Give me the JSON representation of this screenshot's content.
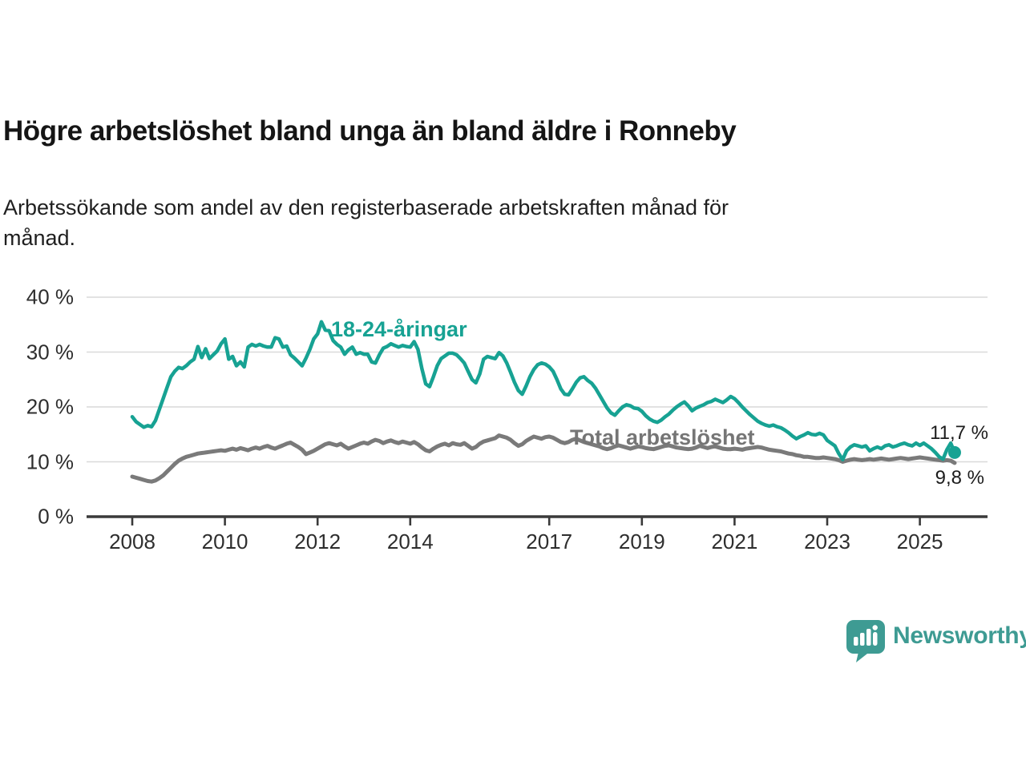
{
  "header": {
    "title": "Högre arbetslöshet bland unga än bland äldre i Ronneby",
    "subtitle_lines": [
      "Arbetssökande som andel av den registerbaserade arbetskraften månad för",
      "månad."
    ]
  },
  "chart_data": {
    "type": "line",
    "title": "Högre arbetslöshet bland unga än bland äldre i Ronneby",
    "x_unit": "month",
    "x_start": "2008-01",
    "x_end": "2025-10",
    "ylim": [
      0,
      40
    ],
    "grid": "horizontal",
    "y_axis": {
      "ticks": [
        {
          "value": 0,
          "label": "0 %"
        },
        {
          "value": 10,
          "label": "10 %"
        },
        {
          "value": 20,
          "label": "20 %"
        },
        {
          "value": 30,
          "label": "30 %"
        },
        {
          "value": 40,
          "label": "40 %"
        }
      ]
    },
    "x_axis": {
      "ticks": [
        {
          "year": 2008,
          "label": "2008"
        },
        {
          "year": 2010,
          "label": "2010"
        },
        {
          "year": 2012,
          "label": "2012"
        },
        {
          "year": 2014,
          "label": "2014"
        },
        {
          "year": 2017,
          "label": "2017"
        },
        {
          "year": 2019,
          "label": "2019"
        },
        {
          "year": 2021,
          "label": "2021"
        },
        {
          "year": 2023,
          "label": "2023"
        },
        {
          "year": 2025,
          "label": "2025"
        }
      ]
    },
    "series": [
      {
        "name": "18-24-åringar",
        "color": "#17a293",
        "last_value_label": "11,7 %",
        "values": [
          18.2,
          17.3,
          16.8,
          16.3,
          16.6,
          16.4,
          17.5,
          19.5,
          21.5,
          23.5,
          25.5,
          26.5,
          27.2,
          27.0,
          27.5,
          28.2,
          28.7,
          31.0,
          29.0,
          30.6,
          28.8,
          29.5,
          30.2,
          31.5,
          32.4,
          28.7,
          29.2,
          27.5,
          28.2,
          27.3,
          30.9,
          31.4,
          31.1,
          31.4,
          31.1,
          30.9,
          30.9,
          32.6,
          32.4,
          30.9,
          31.1,
          29.5,
          28.9,
          28.2,
          27.5,
          28.9,
          30.5,
          32.4,
          33.3,
          35.5,
          34.0,
          33.9,
          32.1,
          31.4,
          30.9,
          29.6,
          30.4,
          30.9,
          29.6,
          29.9,
          29.6,
          29.6,
          28.2,
          28.0,
          29.5,
          30.7,
          31.0,
          31.5,
          31.2,
          30.9,
          31.2,
          31.0,
          30.9,
          31.9,
          30.5,
          27.0,
          24.2,
          23.7,
          25.5,
          27.5,
          28.8,
          29.3,
          29.8,
          29.8,
          29.5,
          28.8,
          28.0,
          26.5,
          25.0,
          24.4,
          26.0,
          28.7,
          29.2,
          29.0,
          28.8,
          29.9,
          29.3,
          28.0,
          26.3,
          24.5,
          23.0,
          22.3,
          23.8,
          25.5,
          26.8,
          27.7,
          28.0,
          27.8,
          27.3,
          26.5,
          25.0,
          23.3,
          22.3,
          22.2,
          23.3,
          24.5,
          25.3,
          25.5,
          24.8,
          24.3,
          23.4,
          22.2,
          21.0,
          19.8,
          18.9,
          18.5,
          19.3,
          20.0,
          20.4,
          20.2,
          19.8,
          19.7,
          19.2,
          18.4,
          17.8,
          17.4,
          17.2,
          17.6,
          18.2,
          18.7,
          19.4,
          20.0,
          20.5,
          20.9,
          20.2,
          19.3,
          19.8,
          20.1,
          20.4,
          20.8,
          21.0,
          21.4,
          21.1,
          20.8,
          21.3,
          21.9,
          21.5,
          20.8,
          20.0,
          19.3,
          18.6,
          18.0,
          17.4,
          17.0,
          16.7,
          16.5,
          16.7,
          16.4,
          16.2,
          15.8,
          15.3,
          14.7,
          14.2,
          14.6,
          14.9,
          15.3,
          15.0,
          14.9,
          15.2,
          14.9,
          13.9,
          13.4,
          12.9,
          11.5,
          10.4,
          12.0,
          12.7,
          13.1,
          12.9,
          12.7,
          12.9,
          12.0,
          12.4,
          12.7,
          12.4,
          12.9,
          13.1,
          12.7,
          12.9,
          13.2,
          13.4,
          13.1,
          12.9,
          13.4,
          13.0,
          13.4,
          12.9,
          12.4,
          11.7,
          10.9,
          10.5,
          12.2,
          13.4,
          11.7
        ]
      },
      {
        "name": "Total arbetslöshet",
        "color": "#7a7a7a",
        "last_value_label": "9,8 %",
        "values": [
          7.3,
          7.1,
          6.9,
          6.7,
          6.5,
          6.4,
          6.6,
          7.0,
          7.5,
          8.2,
          8.9,
          9.6,
          10.2,
          10.6,
          10.9,
          11.1,
          11.3,
          11.5,
          11.6,
          11.7,
          11.8,
          11.9,
          12.0,
          12.1,
          12.0,
          12.2,
          12.4,
          12.2,
          12.5,
          12.3,
          12.1,
          12.4,
          12.6,
          12.4,
          12.7,
          12.9,
          12.6,
          12.4,
          12.7,
          13.0,
          13.3,
          13.5,
          13.1,
          12.7,
          12.2,
          11.4,
          11.7,
          12.0,
          12.4,
          12.8,
          13.2,
          13.4,
          13.2,
          13.0,
          13.3,
          12.8,
          12.4,
          12.7,
          13.0,
          13.3,
          13.5,
          13.3,
          13.7,
          14.0,
          13.8,
          13.4,
          13.7,
          13.9,
          13.6,
          13.4,
          13.7,
          13.5,
          13.3,
          13.6,
          13.2,
          12.6,
          12.1,
          11.9,
          12.4,
          12.8,
          13.1,
          13.3,
          13.0,
          13.4,
          13.2,
          13.1,
          13.4,
          12.9,
          12.4,
          12.7,
          13.3,
          13.7,
          13.9,
          14.1,
          14.3,
          14.8,
          14.6,
          14.4,
          14.0,
          13.4,
          12.9,
          13.2,
          13.8,
          14.2,
          14.6,
          14.4,
          14.2,
          14.5,
          14.6,
          14.4,
          14.0,
          13.6,
          13.4,
          13.6,
          14.0,
          14.2,
          13.9,
          13.6,
          13.4,
          13.2,
          13.0,
          12.8,
          12.5,
          12.3,
          12.5,
          12.8,
          13.0,
          12.8,
          12.6,
          12.4,
          12.6,
          12.8,
          12.7,
          12.5,
          12.4,
          12.3,
          12.5,
          12.7,
          12.9,
          13.0,
          12.8,
          12.6,
          12.5,
          12.4,
          12.3,
          12.4,
          12.6,
          12.9,
          12.7,
          12.5,
          12.7,
          12.8,
          12.6,
          12.4,
          12.3,
          12.3,
          12.4,
          12.3,
          12.2,
          12.4,
          12.5,
          12.6,
          12.7,
          12.6,
          12.4,
          12.2,
          12.1,
          12.0,
          11.9,
          11.7,
          11.5,
          11.4,
          11.2,
          11.1,
          10.9,
          10.9,
          10.8,
          10.7,
          10.7,
          10.8,
          10.7,
          10.6,
          10.5,
          10.3,
          10.0,
          10.2,
          10.4,
          10.5,
          10.4,
          10.3,
          10.4,
          10.5,
          10.4,
          10.5,
          10.6,
          10.5,
          10.4,
          10.5,
          10.6,
          10.7,
          10.6,
          10.5,
          10.6,
          10.7,
          10.8,
          10.7,
          10.6,
          10.5,
          10.4,
          10.3,
          10.2,
          10.3,
          10.2,
          9.8
        ]
      }
    ],
    "colors": {
      "grid": "#d9d9d9",
      "axis": "#3a3a3a",
      "young_series": "#17a293",
      "total_series": "#7a7a7a",
      "logo_teal": "#3e9b93"
    }
  },
  "footer": {
    "brand": "Newsworthy"
  }
}
